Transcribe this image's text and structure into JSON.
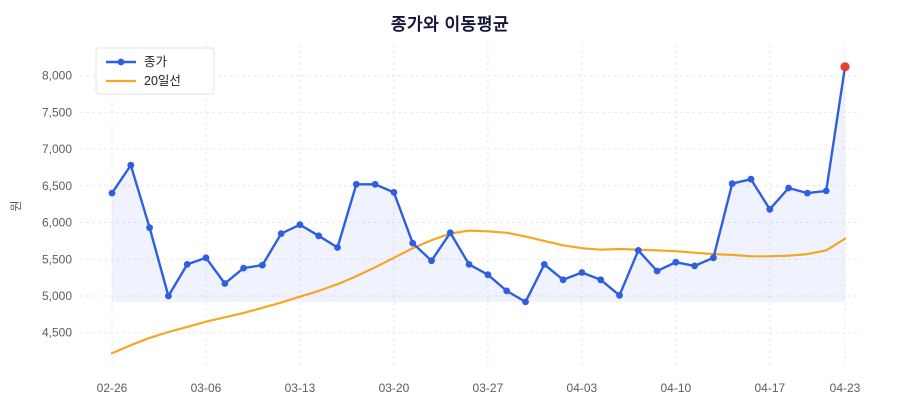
{
  "chart_data": {
    "type": "line",
    "title": "종가와 이동평균",
    "ylabel": "원",
    "xlabel": "",
    "grid": "dashed",
    "legend_position": "top-left",
    "x_tick_labels": [
      "02-26",
      "03-06",
      "03-13",
      "03-20",
      "03-27",
      "04-03",
      "04-10",
      "04-17",
      "04-23"
    ],
    "x_tick_indices": [
      0,
      5,
      10,
      15,
      20,
      25,
      30,
      35,
      39
    ],
    "y_ticks": [
      4500,
      5000,
      5500,
      6000,
      6500,
      7000,
      7500,
      8000
    ],
    "ylim": [
      4020,
      8430
    ],
    "series": [
      {
        "name": "종가",
        "type": "line-marker",
        "color": "#2e5fe0",
        "fill_to_min": true,
        "fill_color": "rgba(62,100,230,0.08)",
        "last_point_color": "#e8402d",
        "values": [
          6400,
          6780,
          5930,
          5000,
          5430,
          5520,
          5170,
          5380,
          5420,
          5850,
          5970,
          5820,
          5660,
          6520,
          6520,
          6410,
          5720,
          5480,
          5860,
          5430,
          5290,
          5070,
          4920,
          5430,
          5220,
          5320,
          5220,
          5010,
          5620,
          5340,
          5460,
          5410,
          5520,
          6530,
          6590,
          6180,
          6470,
          6400,
          6430,
          8120
        ]
      },
      {
        "name": "20일선",
        "type": "line",
        "color": "#f5a623",
        "values": [
          4220,
          4330,
          4430,
          4510,
          4580,
          4650,
          4710,
          4770,
          4840,
          4910,
          4990,
          5070,
          5160,
          5270,
          5390,
          5520,
          5650,
          5760,
          5850,
          5890,
          5880,
          5860,
          5810,
          5750,
          5690,
          5650,
          5630,
          5640,
          5630,
          5620,
          5610,
          5590,
          5570,
          5560,
          5540,
          5540,
          5550,
          5570,
          5620,
          5780
        ]
      }
    ],
    "colors": {
      "grid": "#e7e7f0",
      "tick_text": "#5c5c66",
      "title_text": "#15153a",
      "legend_border": "#e2e2ec",
      "background": "#ffffff"
    }
  }
}
